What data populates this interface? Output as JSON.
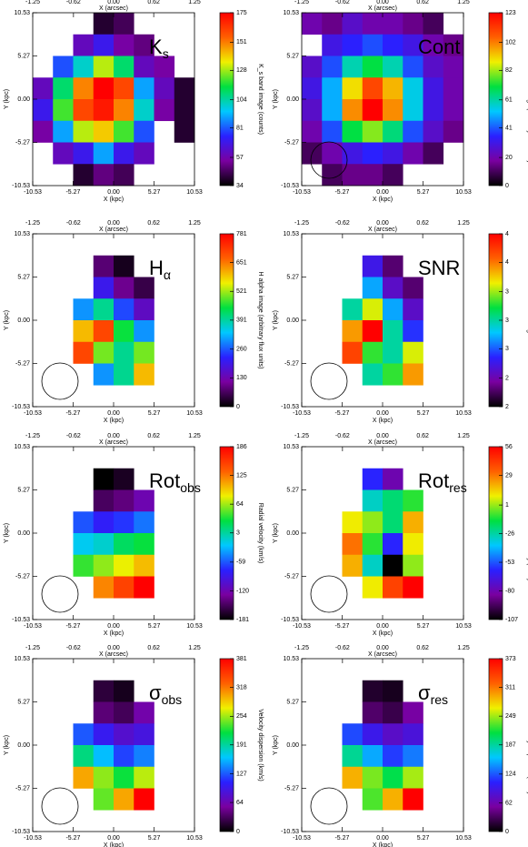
{
  "chart_data": [
    {
      "type": "heatmap",
      "label": "K",
      "label_sub": "s",
      "xlabel": "X (kpc)",
      "ylabel": "Y (kpc)",
      "x2label": "X (arcsec)",
      "colorbar_label": "K_s band image (counts)",
      "xlim": [
        -10.53,
        10.53
      ],
      "ylim": [
        -10.53,
        10.53
      ],
      "x2lim": [
        -1.25,
        1.25
      ],
      "xticks": [
        -10.53,
        -5.27,
        {
          "value": 0,
          "label": "0.00"
        },
        5.27,
        10.53
      ],
      "yticks": [
        -10.53,
        -5.27,
        {
          "value": 0,
          "label": "0.00"
        },
        5.27,
        10.53
      ],
      "x2ticks": [
        -1.25,
        -0.62,
        {
          "value": 0,
          "label": "0.00"
        },
        0.62,
        1.25
      ],
      "zlim": [
        34,
        175
      ],
      "zticks": [
        34,
        57,
        81,
        104,
        128,
        151,
        175
      ],
      "colormap": [
        "#000000",
        "#7a00a0",
        "#2a20ff",
        "#00c8ff",
        "#00e040",
        "#f0f000",
        "#ff6000",
        "#ff0000"
      ],
      "values": [
        [
          null,
          null,
          null,
          40,
          45,
          null,
          null,
          null
        ],
        [
          null,
          null,
          60,
          70,
          55,
          50,
          null,
          null
        ],
        [
          null,
          80,
          100,
          130,
          110,
          60,
          55,
          null
        ],
        [
          60,
          110,
          150,
          175,
          160,
          90,
          60,
          40
        ],
        [
          70,
          120,
          160,
          170,
          150,
          100,
          55,
          40
        ],
        [
          55,
          90,
          130,
          140,
          120,
          80,
          null,
          40
        ],
        [
          null,
          60,
          70,
          90,
          70,
          60,
          null,
          null
        ],
        [
          null,
          null,
          40,
          50,
          45,
          null,
          null,
          null
        ]
      ]
    },
    {
      "type": "heatmap",
      "label": "Cont",
      "xlabel": "X (kpc)",
      "ylabel": "Y (kpc)",
      "x2label": "X (arcsec)",
      "colorbar_label": "H band continuum image (arbitrary flux units)",
      "xlim": [
        -10.53,
        10.53
      ],
      "ylim": [
        -10.53,
        10.53
      ],
      "x2lim": [
        -1.25,
        1.25
      ],
      "xticks": [
        -10.53,
        -5.27,
        {
          "value": 0,
          "label": "0.00"
        },
        5.27,
        10.53
      ],
      "yticks": [
        -10.53,
        -5.27,
        {
          "value": 0,
          "label": "0.00"
        },
        5.27,
        10.53
      ],
      "x2ticks": [
        -1.25,
        -0.62,
        {
          "value": 0,
          "label": "0.00"
        },
        0.62,
        1.25
      ],
      "zlim": [
        0,
        123
      ],
      "zticks": [
        0,
        20,
        41,
        61,
        82,
        102,
        123
      ],
      "colormap": [
        "#000000",
        "#7a00a0",
        "#2a20ff",
        "#00c8ff",
        "#00e040",
        "#f0f000",
        "#ff6000",
        "#ff0000"
      ],
      "values": [
        [
          20,
          15,
          25,
          20,
          20,
          15,
          10,
          null
        ],
        [
          null,
          30,
          35,
          40,
          35,
          30,
          20,
          15
        ],
        [
          25,
          40,
          60,
          70,
          60,
          40,
          25,
          20
        ],
        [
          30,
          50,
          90,
          110,
          95,
          55,
          30,
          20
        ],
        [
          25,
          50,
          100,
          123,
          100,
          55,
          30,
          20
        ],
        [
          20,
          40,
          70,
          80,
          65,
          40,
          25,
          15
        ],
        [
          10,
          20,
          30,
          35,
          30,
          20,
          10,
          null
        ],
        [
          null,
          10,
          15,
          15,
          10,
          null,
          null,
          null
        ]
      ]
    },
    {
      "type": "heatmap",
      "label": "H",
      "label_sub": "α",
      "xlabel": "X (kpc)",
      "ylabel": "Y (kpc)",
      "x2label": "X (arcsec)",
      "colorbar_label": "H alpha image (arbitrary flux units)",
      "xlim": [
        -10.53,
        10.53
      ],
      "ylim": [
        -10.53,
        10.53
      ],
      "x2lim": [
        -1.25,
        1.25
      ],
      "xticks": [
        -10.53,
        -5.27,
        {
          "value": 0,
          "label": "0.00"
        },
        5.27,
        10.53
      ],
      "yticks": [
        -10.53,
        -5.27,
        {
          "value": 0,
          "label": "0.00"
        },
        5.27,
        10.53
      ],
      "x2ticks": [
        -1.25,
        -0.62,
        {
          "value": 0,
          "label": "0.00"
        },
        0.62,
        1.25
      ],
      "zlim": [
        0,
        781
      ],
      "zticks": [
        0,
        130,
        260,
        391,
        521,
        651,
        781
      ],
      "colormap": [
        "#000000",
        "#7a00a0",
        "#2a20ff",
        "#00c8ff",
        "#00e040",
        "#f0f000",
        "#ff6000",
        "#ff0000"
      ],
      "values": [
        [
          null,
          null,
          null,
          null,
          null,
          null,
          null,
          null
        ],
        [
          null,
          null,
          null,
          80,
          20,
          null,
          null,
          null
        ],
        [
          null,
          null,
          null,
          200,
          100,
          50,
          null,
          null
        ],
        [
          null,
          null,
          300,
          400,
          250,
          150,
          null,
          null
        ],
        [
          null,
          null,
          600,
          700,
          450,
          300,
          null,
          null
        ],
        [
          null,
          null,
          700,
          500,
          400,
          500,
          null,
          null
        ],
        [
          null,
          null,
          null,
          300,
          400,
          600,
          null,
          null
        ],
        [
          null,
          null,
          null,
          null,
          null,
          null,
          null,
          null
        ]
      ]
    },
    {
      "type": "heatmap",
      "label": "SNR",
      "xlabel": "X (kpc)",
      "ylabel": "Y (kpc)",
      "x2label": "X (arcsec)",
      "colorbar_label": "SNR image",
      "xlim": [
        -10.53,
        10.53
      ],
      "ylim": [
        -10.53,
        10.53
      ],
      "x2lim": [
        -1.25,
        1.25
      ],
      "xticks": [
        -10.53,
        -5.27,
        {
          "value": 0,
          "label": "0.00"
        },
        5.27,
        10.53
      ],
      "yticks": [
        -10.53,
        -5.27,
        {
          "value": 0,
          "label": "0.00"
        },
        5.27,
        10.53
      ],
      "x2ticks": [
        -1.25,
        -0.62,
        {
          "value": 0,
          "label": "0.00"
        },
        0.62,
        1.25
      ],
      "zlim": [
        2,
        4
      ],
      "zticks": [
        2,
        {
          "value": 2.33,
          "label": "2"
        },
        {
          "value": 2.67,
          "label": "3"
        },
        3,
        {
          "value": 3.33,
          "label": "3"
        },
        {
          "value": 3.67,
          "label": "4"
        },
        4
      ],
      "colormap": [
        "#000000",
        "#7a00a0",
        "#2a20ff",
        "#00c8ff",
        "#00e040",
        "#f0f000",
        "#ff6000",
        "#ff0000"
      ],
      "values": [
        [
          null,
          null,
          null,
          null,
          null,
          null,
          null,
          null
        ],
        [
          null,
          null,
          null,
          2.5,
          2.2,
          null,
          null,
          null
        ],
        [
          null,
          null,
          null,
          2.8,
          2.4,
          2.2,
          null,
          null
        ],
        [
          null,
          null,
          3.0,
          3.4,
          2.8,
          2.4,
          null,
          null
        ],
        [
          null,
          null,
          3.6,
          4.0,
          3.0,
          2.6,
          null,
          null
        ],
        [
          null,
          null,
          3.8,
          3.2,
          3.0,
          3.4,
          null,
          null
        ],
        [
          null,
          null,
          null,
          3.0,
          3.2,
          3.6,
          null,
          null
        ],
        [
          null,
          null,
          null,
          null,
          null,
          null,
          null,
          null
        ]
      ]
    },
    {
      "type": "heatmap",
      "label": "Rot",
      "label_sub": "obs",
      "xlabel": "X (kpc)",
      "ylabel": "Y (kpc)",
      "x2label": "X (arcsec)",
      "colorbar_label": "Radial velocity (km/s)",
      "xlim": [
        -10.53,
        10.53
      ],
      "ylim": [
        -10.53,
        10.53
      ],
      "x2lim": [
        -1.25,
        1.25
      ],
      "xticks": [
        -10.53,
        -5.27,
        {
          "value": 0,
          "label": "0.00"
        },
        5.27,
        10.53
      ],
      "yticks": [
        -10.53,
        -5.27,
        {
          "value": 0,
          "label": "0.00"
        },
        5.27,
        10.53
      ],
      "x2ticks": [
        -1.25,
        -0.62,
        {
          "value": 0,
          "label": "0.00"
        },
        0.62,
        1.25
      ],
      "zlim": [
        -181,
        186
      ],
      "zticks": [
        -181,
        -120,
        -59,
        3,
        64,
        125,
        186
      ],
      "colormap": [
        "#000000",
        "#7a00a0",
        "#2a20ff",
        "#00c8ff",
        "#00e040",
        "#f0f000",
        "#ff6000",
        "#ff0000"
      ],
      "values": [
        [
          null,
          null,
          null,
          null,
          null,
          null,
          null,
          null
        ],
        [
          null,
          null,
          null,
          -181,
          -170,
          null,
          null,
          null
        ],
        [
          null,
          null,
          null,
          -150,
          -140,
          -120,
          null,
          null
        ],
        [
          null,
          null,
          -60,
          -80,
          -70,
          -50,
          null,
          null
        ],
        [
          null,
          null,
          -20,
          -10,
          20,
          30,
          null,
          null
        ],
        [
          null,
          null,
          40,
          60,
          80,
          100,
          null,
          null
        ],
        [
          null,
          null,
          null,
          120,
          150,
          186,
          null,
          null
        ],
        [
          null,
          null,
          null,
          null,
          null,
          null,
          null,
          null
        ]
      ]
    },
    {
      "type": "heatmap",
      "label": "Rot",
      "label_sub": "res",
      "xlabel": "X (kpc)",
      "ylabel": "Y (kpc)",
      "x2label": "X (arcsec)",
      "colorbar_label": "Residual rotational velocity (km/s)",
      "xlim": [
        -10.53,
        10.53
      ],
      "ylim": [
        -10.53,
        10.53
      ],
      "x2lim": [
        -1.25,
        1.25
      ],
      "xticks": [
        -10.53,
        -5.27,
        {
          "value": 0,
          "label": "0.00"
        },
        5.27,
        10.53
      ],
      "yticks": [
        -10.53,
        -5.27,
        {
          "value": 0,
          "label": "0.00"
        },
        5.27,
        10.53
      ],
      "x2ticks": [
        -1.25,
        -0.62,
        {
          "value": 0,
          "label": "0.00"
        },
        0.62,
        1.25
      ],
      "zlim": [
        -107,
        56
      ],
      "zticks": [
        -107,
        -80,
        -53,
        -26,
        1,
        29,
        56
      ],
      "colormap": [
        "#000000",
        "#7a00a0",
        "#2a20ff",
        "#00c8ff",
        "#00e040",
        "#f0f000",
        "#ff6000",
        "#ff0000"
      ],
      "values": [
        [
          null,
          null,
          null,
          null,
          null,
          null,
          null,
          null
        ],
        [
          null,
          null,
          null,
          -60,
          -80,
          null,
          null,
          null
        ],
        [
          null,
          null,
          null,
          -30,
          -20,
          -10,
          null,
          null
        ],
        [
          null,
          null,
          10,
          0,
          -20,
          20,
          null,
          null
        ],
        [
          null,
          null,
          30,
          -10,
          -60,
          10,
          null,
          null
        ],
        [
          null,
          null,
          20,
          -30,
          -107,
          0,
          null,
          null
        ],
        [
          null,
          null,
          null,
          10,
          40,
          56,
          null,
          null
        ],
        [
          null,
          null,
          null,
          null,
          null,
          null,
          null,
          null
        ]
      ]
    },
    {
      "type": "heatmap",
      "label": "σ",
      "label_sub": "obs",
      "xlabel": "X (kpc)",
      "ylabel": "Y (kpc)",
      "x2label": "X (arcsec)",
      "colorbar_label": "Velocity dispersion (km/s)",
      "xlim": [
        -10.53,
        10.53
      ],
      "ylim": [
        -10.53,
        10.53
      ],
      "x2lim": [
        -1.25,
        1.25
      ],
      "xticks": [
        -10.53,
        -5.27,
        {
          "value": 0,
          "label": "0.00"
        },
        5.27,
        10.53
      ],
      "yticks": [
        -10.53,
        -5.27,
        {
          "value": 0,
          "label": "0.00"
        },
        5.27,
        10.53
      ],
      "x2ticks": [
        -1.25,
        -0.62,
        {
          "value": 0,
          "label": "0.00"
        },
        0.62,
        1.25
      ],
      "zlim": [
        0,
        381
      ],
      "zticks": [
        0,
        64,
        127,
        191,
        254,
        318,
        381
      ],
      "colormap": [
        "#000000",
        "#7a00a0",
        "#2a20ff",
        "#00c8ff",
        "#00e040",
        "#f0f000",
        "#ff6000",
        "#ff0000"
      ],
      "values": [
        [
          null,
          null,
          null,
          null,
          null,
          null,
          null,
          null
        ],
        [
          null,
          null,
          null,
          20,
          10,
          null,
          null,
          null
        ],
        [
          null,
          null,
          null,
          40,
          30,
          60,
          null,
          null
        ],
        [
          null,
          null,
          127,
          100,
          80,
          90,
          null,
          null
        ],
        [
          null,
          null,
          200,
          160,
          120,
          140,
          null,
          null
        ],
        [
          null,
          null,
          300,
          250,
          220,
          260,
          null,
          null
        ],
        [
          null,
          null,
          null,
          240,
          300,
          381,
          null,
          null
        ],
        [
          null,
          null,
          null,
          null,
          null,
          null,
          null,
          null
        ]
      ]
    },
    {
      "type": "heatmap",
      "label": "σ",
      "label_sub": "res",
      "xlabel": "X (kpc)",
      "ylabel": "Y (kpc)",
      "x2label": "X (arcsec)",
      "colorbar_label": "Residual velocity dispersion (km/s)",
      "xlim": [
        -10.53,
        10.53
      ],
      "ylim": [
        -10.53,
        10.53
      ],
      "x2lim": [
        -1.25,
        1.25
      ],
      "xticks": [
        -10.53,
        -5.27,
        {
          "value": 0,
          "label": "0.00"
        },
        5.27,
        10.53
      ],
      "yticks": [
        -10.53,
        -5.27,
        {
          "value": 0,
          "label": "0.00"
        },
        5.27,
        10.53
      ],
      "x2ticks": [
        -1.25,
        -0.62,
        {
          "value": 0,
          "label": "0.00"
        },
        0.62,
        1.25
      ],
      "zlim": [
        0,
        373
      ],
      "zticks": [
        0,
        62,
        124,
        187,
        249,
        311,
        373
      ],
      "colormap": [
        "#000000",
        "#7a00a0",
        "#2a20ff",
        "#00c8ff",
        "#00e040",
        "#f0f000",
        "#ff6000",
        "#ff0000"
      ],
      "values": [
        [
          null,
          null,
          null,
          null,
          null,
          null,
          null,
          null
        ],
        [
          null,
          null,
          null,
          15,
          10,
          null,
          null,
          null
        ],
        [
          null,
          null,
          null,
          35,
          25,
          55,
          null,
          null
        ],
        [
          null,
          null,
          120,
          95,
          75,
          85,
          null,
          null
        ],
        [
          null,
          null,
          190,
          150,
          115,
          135,
          null,
          null
        ],
        [
          null,
          null,
          290,
          240,
          210,
          250,
          null,
          null
        ],
        [
          null,
          null,
          null,
          230,
          290,
          373,
          null,
          null
        ],
        [
          null,
          null,
          null,
          null,
          null,
          null,
          null,
          null
        ]
      ]
    }
  ]
}
